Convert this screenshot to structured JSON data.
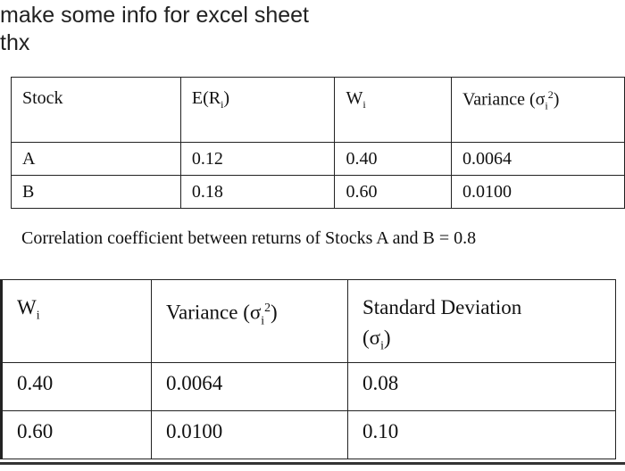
{
  "question": {
    "line1": "make some info for excel sheet",
    "line2": "thx"
  },
  "table1": {
    "headers": [
      "Stock",
      "E(R",
      "W",
      "Variance (σ"
    ],
    "subscript": "i",
    "superscript": "2",
    "rows": [
      [
        "A",
        "0.12",
        "0.40",
        "0.0064"
      ],
      [
        "B",
        "0.18",
        "0.60",
        "0.0100"
      ]
    ],
    "note": "Correlation coefficient between returns of Stocks A and B = 0.8"
  },
  "table2": {
    "headers": [
      "W",
      "Variance (σ",
      "Standard Deviation"
    ],
    "header3_line2": "(σ",
    "rows": [
      [
        "0.40",
        "0.0064",
        "0.08"
      ],
      [
        "0.60",
        "0.0100",
        "0.10"
      ]
    ]
  }
}
